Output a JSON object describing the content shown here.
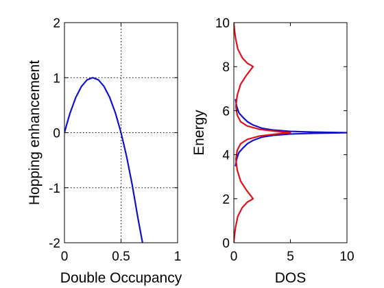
{
  "chart_data": [
    {
      "type": "line",
      "xlabel": "Double Occupancy",
      "ylabel": "Hopping enhancement",
      "xlim": [
        0,
        1
      ],
      "ylim": [
        -2,
        2
      ],
      "xticks": [
        0,
        0.5,
        1
      ],
      "xtick_labels": [
        "0",
        "0.5",
        "1"
      ],
      "yticks": [
        -2,
        -1,
        0,
        1,
        2
      ],
      "ytick_labels": [
        "-2",
        "-1",
        "0",
        "1",
        "2"
      ],
      "grid": true,
      "series": [
        {
          "color": "#1010c8",
          "x": [
            0,
            0.02,
            0.05,
            0.1,
            0.15,
            0.2,
            0.25,
            0.3,
            0.35,
            0.4,
            0.45,
            0.5,
            0.55,
            0.6,
            0.65,
            0.69
          ],
          "y": [
            0.0,
            0.15,
            0.36,
            0.64,
            0.84,
            0.96,
            1.0,
            0.96,
            0.84,
            0.64,
            0.36,
            0.0,
            -0.44,
            -0.96,
            -1.56,
            -2.0
          ]
        }
      ]
    },
    {
      "type": "line",
      "xlabel": "DOS",
      "ylabel": "Energy",
      "xlim": [
        0,
        10
      ],
      "ylim": [
        0,
        10
      ],
      "xticks": [
        0,
        5,
        10
      ],
      "xtick_labels": [
        "0",
        "5",
        "10"
      ],
      "yticks": [
        0,
        2,
        4,
        6,
        8,
        10
      ],
      "ytick_labels": [
        "0",
        "2",
        "4",
        "6",
        "8",
        "10"
      ],
      "grid": false,
      "series": [
        {
          "color": "#1010c8",
          "x": [
            0.15,
            0.25,
            0.45,
            0.8,
            1.2,
            1.7,
            2.5,
            3.5,
            5.0,
            7.0,
            10.0,
            7.0,
            5.0,
            3.5,
            2.5,
            1.7,
            1.2,
            0.8,
            0.45,
            0.25,
            0.15
          ],
          "y": [
            3.5,
            3.8,
            4.1,
            4.3,
            4.5,
            4.65,
            4.8,
            4.88,
            4.94,
            4.97,
            5.0,
            5.03,
            5.06,
            5.12,
            5.2,
            5.35,
            5.5,
            5.7,
            5.9,
            6.2,
            6.5
          ]
        },
        {
          "color": "#e0101a",
          "x": [
            0.0,
            0.05,
            0.15,
            0.35,
            0.75,
            1.2,
            1.55,
            1.7,
            1.55,
            1.1,
            0.6,
            0.3,
            0.18,
            0.3,
            0.6,
            1.2,
            2.3,
            3.6,
            5.0,
            3.6,
            2.3,
            1.2,
            0.6,
            0.3,
            0.18,
            0.3,
            0.6,
            1.1,
            1.55,
            1.7,
            1.55,
            1.2,
            0.75,
            0.35,
            0.15,
            0.05,
            0.0
          ],
          "y": [
            0.0,
            0.3,
            0.7,
            1.2,
            1.6,
            1.85,
            1.95,
            2.0,
            2.1,
            2.4,
            2.8,
            3.3,
            3.8,
            4.2,
            4.5,
            4.7,
            4.85,
            4.93,
            5.0,
            5.07,
            5.15,
            5.3,
            5.5,
            5.8,
            6.2,
            6.7,
            7.2,
            7.6,
            7.9,
            8.0,
            8.05,
            8.15,
            8.4,
            8.8,
            9.3,
            9.7,
            10.0
          ]
        }
      ]
    }
  ]
}
